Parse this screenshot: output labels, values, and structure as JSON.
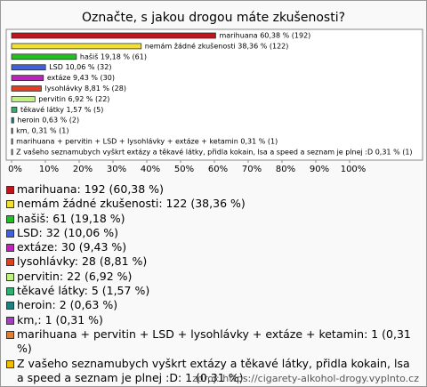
{
  "chart_data": {
    "type": "barh",
    "title": "Označte, s jakou drogou máte zkušenosti?",
    "categories": [
      "marihuana",
      "nemám žádné zkušenosti",
      "hašiš",
      "LSD",
      "extáze",
      "lysohlávky",
      "pervitin",
      "těkavé látky",
      "heroin",
      "km,",
      "marihuana + pervitin + LSD + lysohlávky + extáze + ketamin",
      "Z vašeho seznamubych vyškrt extázy a těkavé látky, přidla kokain, lsa a speed a seznam je plnej :D"
    ],
    "values": [
      60.38,
      38.36,
      19.18,
      10.06,
      9.43,
      8.81,
      6.92,
      1.57,
      0.63,
      0.31,
      0.31,
      0.31
    ],
    "value_labels": [
      "marihuana 60,38 % (192)",
      "nemám žádné zkušenosti 38,36 % (122)",
      "hašiš 19,18 % (61)",
      "LSD 10,06 % (32)",
      "extáze 9,43 % (30)",
      "lysohlávky 8,81 % (28)",
      "pervitin 6,92 % (22)",
      "těkavé látky 1,57 % (5)",
      "heroin 0,63 % (2)",
      "km, 0,31 % (1)",
      "marihuana + pervitin + LSD + lysohlávky + extáze + ketamin 0,31 % (1)",
      "Z vašeho seznamubych vyškrt extázy a těkavé látky, přidla kokain, lsa a speed a seznam je plnej :D 0,31 % (1)"
    ],
    "colors": [
      "#c0141c",
      "#f0e030",
      "#20c020",
      "#4060e0",
      "#c020c0",
      "#e04020",
      "#c0f080",
      "#30b070",
      "#208080",
      "#a040c0",
      "#e08030",
      "#f0c000"
    ],
    "legend_labels": [
      "marihuana: 192 (60,38 %)",
      "nemám žádné zkušenosti: 122 (38,36 %)",
      "hašiš: 61 (19,18 %)",
      "LSD: 32 (10,06 %)",
      "extáze: 30 (9,43 %)",
      "lysohlávky: 28 (8,81 %)",
      "pervitin: 22 (6,92 %)",
      "těkavé látky: 5 (1,57 %)",
      "heroin: 2 (0,63 %)",
      "km,: 1 (0,31 %)",
      "marihuana + pervitin + LSD + lysohlávky + extáze + ketamin: 1 (0,31 %)",
      "Z vašeho seznamubych vyškrt extázy a těkavé látky, přidla kokain, lsa a speed a seznam je plnej :D: 1 (0,31 %)"
    ],
    "xlim": [
      0,
      100
    ],
    "xticks": [
      {
        "value": 0,
        "label": "0%"
      },
      {
        "value": 10,
        "label": "10%"
      },
      {
        "value": 20,
        "label": "20%"
      },
      {
        "value": 30,
        "label": "30%"
      },
      {
        "value": 40,
        "label": "40%"
      },
      {
        "value": 50,
        "label": "50%"
      },
      {
        "value": 60,
        "label": "60%"
      },
      {
        "value": 70,
        "label": "70%"
      },
      {
        "value": 80,
        "label": "80%"
      },
      {
        "value": 90,
        "label": "90%"
      },
      {
        "value": 100,
        "label": "100%"
      }
    ],
    "grid": false,
    "source": "zdroj: https://cigarety-alkohol-drogy.vyplnto.cz"
  }
}
